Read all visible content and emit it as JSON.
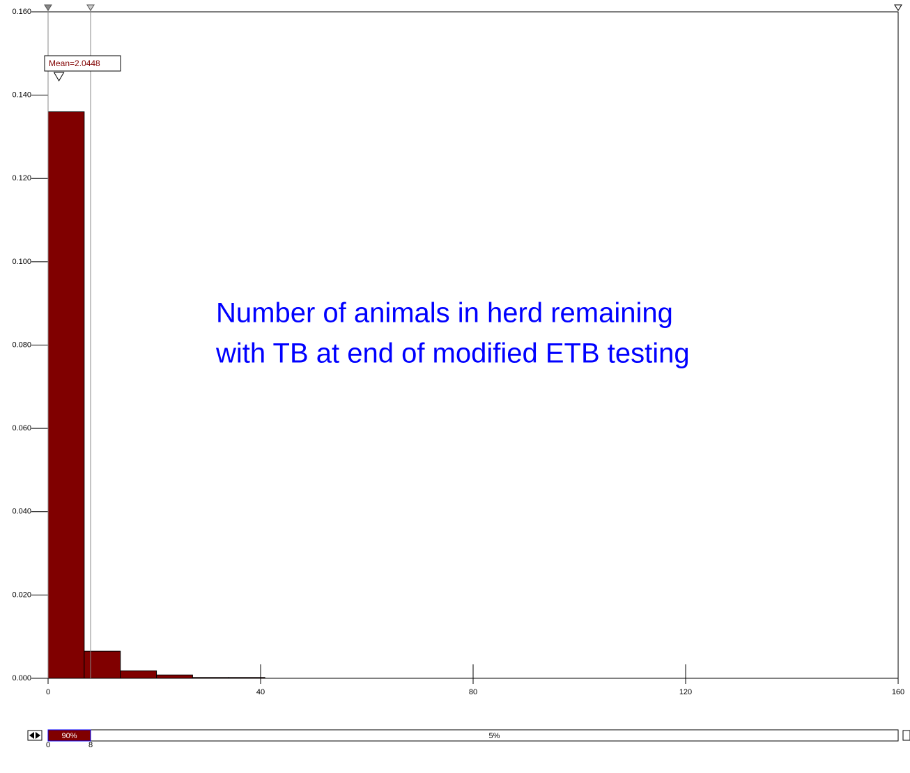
{
  "chart_data": {
    "type": "histogram",
    "annotation": [
      "Number of animals in herd remaining",
      "with TB at end of modified ETB testing"
    ],
    "bins": [
      0,
      6.8,
      13.6,
      20.4,
      27.2,
      34,
      40.8
    ],
    "values": [
      0.136,
      0.0065,
      0.0018,
      0.0008,
      0.0002,
      0.0002
    ],
    "color": "#800000",
    "xlim": [
      0,
      160
    ],
    "ylim": [
      0,
      0.16
    ],
    "xticks": [
      0,
      40,
      80,
      120,
      160
    ],
    "yticks": [
      {
        "value": 0,
        "label": "0.000"
      },
      {
        "value": 0.02,
        "label": "0.020"
      },
      {
        "value": 0.04,
        "label": "0.040"
      },
      {
        "value": 0.06,
        "label": "0.060"
      },
      {
        "value": 0.08,
        "label": "0.080"
      },
      {
        "value": 0.1,
        "label": "0.100"
      },
      {
        "value": 0.12,
        "label": "0.120"
      },
      {
        "value": 0.14,
        "label": "0.140"
      },
      {
        "value": 0.16,
        "label": "0.160"
      }
    ],
    "mean": 2.0448,
    "mean_label": "Mean=2.0448",
    "delimiters": [
      0,
      8
    ],
    "slider_labels": [
      "90%",
      "5%"
    ]
  }
}
